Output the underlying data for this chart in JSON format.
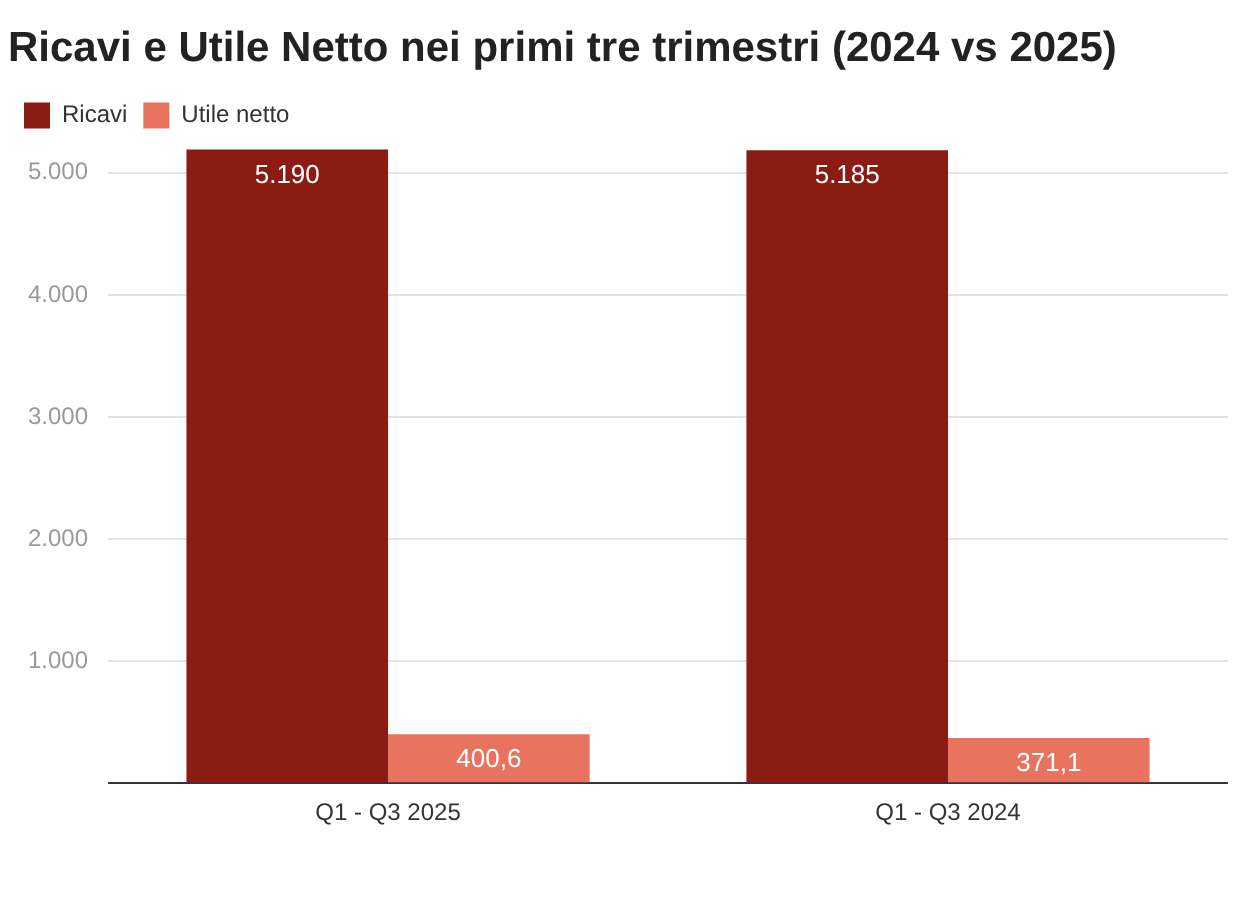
{
  "chart_data": {
    "type": "bar",
    "title": "Ricavi e Utile Netto nei primi tre trimestri (2024 vs 2025)",
    "categories": [
      "Q1 - Q3 2025",
      "Q1 - Q3 2024"
    ],
    "series": [
      {
        "name": "Ricavi",
        "color": "#8b1c14",
        "values": [
          5190,
          5185
        ],
        "value_labels": [
          "5.190",
          "5.185"
        ]
      },
      {
        "name": "Utile netto",
        "color": "#e8735f",
        "values": [
          400.6,
          371.1
        ],
        "value_labels": [
          "400,6",
          "371,1"
        ]
      }
    ],
    "ylim": [
      0,
      5200
    ],
    "yticks": [
      {
        "value": 0,
        "label": null
      },
      {
        "value": 1000,
        "label": "1.000"
      },
      {
        "value": 2000,
        "label": "2.000"
      },
      {
        "value": 3000,
        "label": "3.000"
      },
      {
        "value": 4000,
        "label": "4.000"
      },
      {
        "value": 5000,
        "label": "5.000"
      }
    ],
    "grid": "y",
    "legend": "top left"
  }
}
